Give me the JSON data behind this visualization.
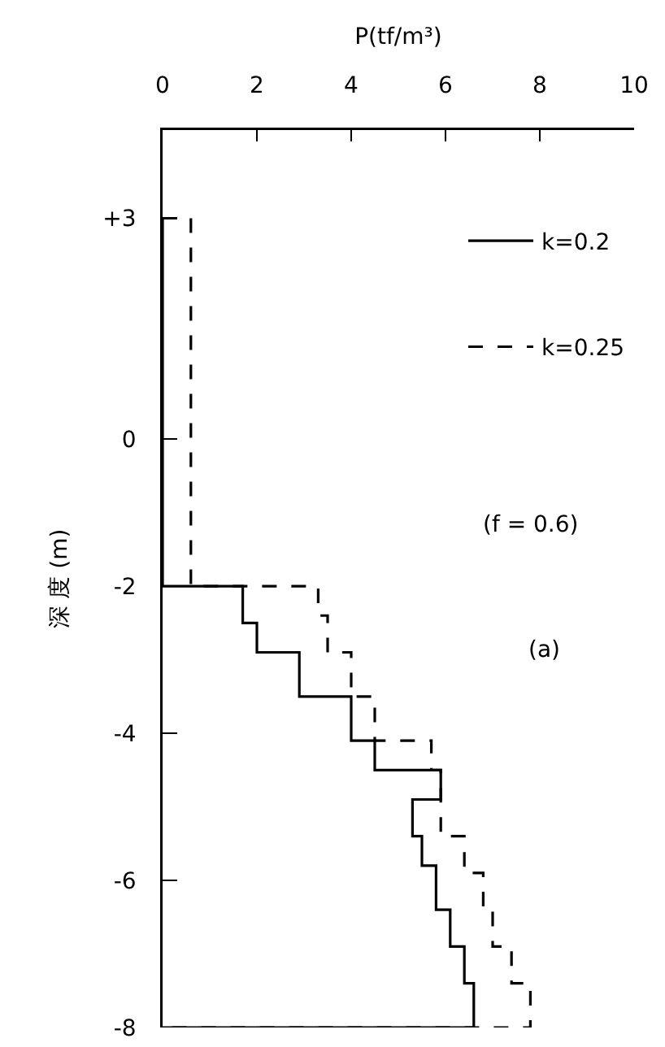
{
  "chart_data": {
    "type": "line",
    "xlabel": "P(tf/m³)",
    "ylabel": "深 度 (m)",
    "xlim": [
      0,
      10
    ],
    "xticks": [
      0,
      2,
      4,
      6,
      8,
      10
    ],
    "ylim": [
      -8,
      4.2
    ],
    "yticks": [
      {
        "value": 3,
        "label": "+3"
      },
      0,
      -2,
      -4,
      -6,
      -8
    ],
    "legend": "top right",
    "annotations": [
      "(f = 0.6)",
      "(a)"
    ],
    "series": [
      {
        "name": "k=0.2",
        "color": "#000000",
        "line_style": "solid",
        "x": [
          0,
          0,
          1.7,
          1.7,
          2.0,
          2.0,
          2.9,
          2.9,
          4.0,
          4.0,
          4.5,
          4.5,
          5.9,
          5.9,
          5.3,
          5.3,
          5.5,
          5.5,
          5.8,
          5.8,
          6.1,
          6.1,
          6.4,
          6.4,
          6.6,
          6.6,
          0
        ],
        "values": [
          3,
          -2,
          -2,
          -2.5,
          -2.5,
          -2.9,
          -2.9,
          -3.5,
          -3.5,
          -4.1,
          -4.1,
          -4.5,
          -4.5,
          -4.9,
          -4.9,
          -5.4,
          -5.4,
          -5.8,
          -5.8,
          -6.4,
          -6.4,
          -6.9,
          -6.9,
          -7.4,
          -7.4,
          -8,
          -8
        ]
      },
      {
        "name": "k=0.25",
        "color": "#000000",
        "line_style": "dashed",
        "x": [
          0.6,
          0.6,
          3.3,
          3.3,
          3.5,
          3.5,
          4.0,
          4.0,
          4.5,
          4.5,
          5.7,
          5.7,
          5.9,
          5.9,
          6.4,
          6.4,
          6.8,
          6.8,
          7.0,
          7.0,
          7.4,
          7.4,
          7.8,
          7.8,
          0
        ],
        "values": [
          3,
          -2,
          -2,
          -2.4,
          -2.4,
          -2.9,
          -2.9,
          -3.5,
          -3.5,
          -4.1,
          -4.1,
          -4.5,
          -4.5,
          -5.4,
          -5.4,
          -5.9,
          -5.9,
          -6.4,
          -6.4,
          -6.9,
          -6.9,
          -7.4,
          -7.4,
          -8,
          -8
        ]
      }
    ]
  }
}
